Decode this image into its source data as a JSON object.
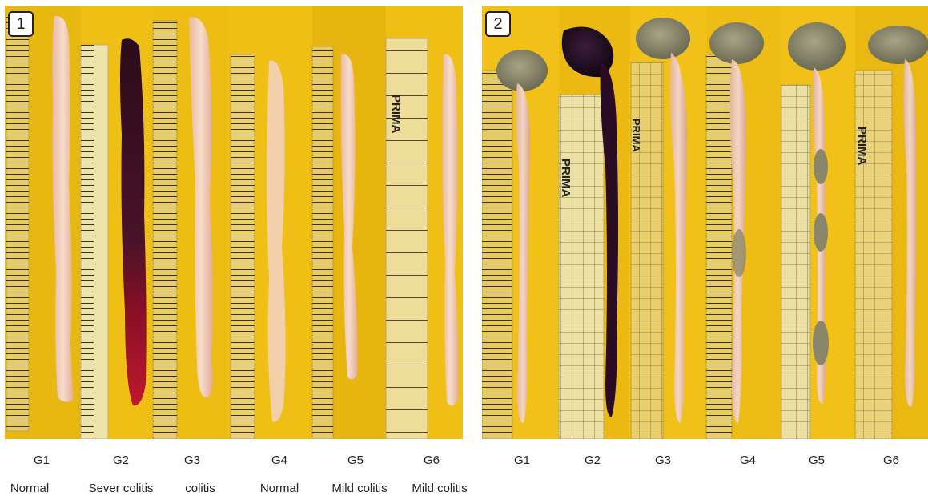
{
  "panels": [
    {
      "number": "1",
      "groups": [
        "G1",
        "G2",
        "G3",
        "G4",
        "G5",
        "G6"
      ],
      "conditions": [
        "Normal",
        "Sever colitis",
        "colitis",
        "Normal",
        "Mild colitis",
        "Mild colitis"
      ],
      "ruler_brand": "PRIMA"
    },
    {
      "number": "2",
      "groups": [
        "G1",
        "G2",
        "G3",
        "G4",
        "G5",
        "G6"
      ],
      "ruler_brand": "PRIMA"
    }
  ],
  "colors": {
    "background": "#f2c21a",
    "ruler": "#e9cf6a",
    "ruler_clear": "#efe2a6",
    "normal_colon": "#f0cdb4",
    "severe_colon": "#4a1228",
    "bleeding": "#b0152b",
    "cecum": "#8c8a6e"
  }
}
